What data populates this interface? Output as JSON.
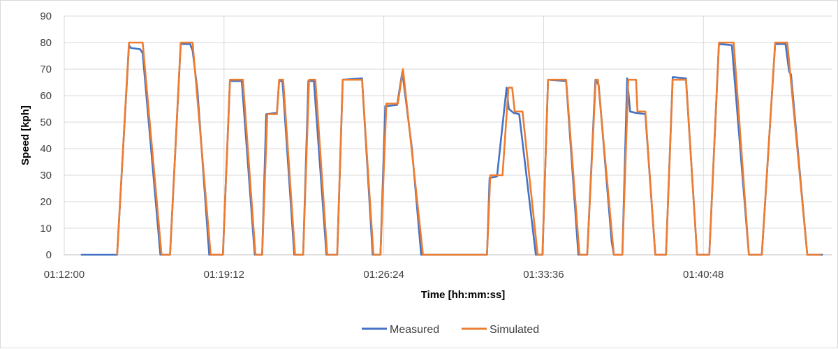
{
  "chart_data": {
    "type": "line",
    "title": "",
    "xlabel": "Time [hh:mm:ss]",
    "ylabel": "Speed [kph]",
    "x_units": "seconds since 01:12:00",
    "xlim": [
      0,
      2075
    ],
    "ylim": [
      0,
      90
    ],
    "y_ticks": [
      0,
      10,
      20,
      30,
      40,
      50,
      60,
      70,
      80,
      90
    ],
    "x_ticks": [
      0,
      432,
      864,
      1296,
      1728
    ],
    "x_tick_labels": [
      "01:12:00",
      "01:19:12",
      "01:26:24",
      "01:33:36",
      "01:40:48"
    ],
    "grid": true,
    "legend_position": "bottom",
    "series": [
      {
        "name": "Measured",
        "color": "#4472c4",
        "points": [
          [
            45,
            0
          ],
          [
            143,
            0
          ],
          [
            175,
            79
          ],
          [
            180,
            78
          ],
          [
            205,
            77.5
          ],
          [
            212,
            76
          ],
          [
            260,
            0
          ],
          [
            286,
            0
          ],
          [
            315,
            79.5
          ],
          [
            340,
            79.5
          ],
          [
            347,
            77
          ],
          [
            360,
            62
          ],
          [
            392,
            0
          ],
          [
            429,
            0
          ],
          [
            448,
            65.5
          ],
          [
            480,
            65.5
          ],
          [
            515,
            0
          ],
          [
            535,
            0
          ],
          [
            546,
            53
          ],
          [
            575,
            53.5
          ],
          [
            581,
            65.5
          ],
          [
            590,
            65.5
          ],
          [
            622,
            0
          ],
          [
            646,
            0
          ],
          [
            660,
            65.5
          ],
          [
            675,
            65.5
          ],
          [
            709,
            0
          ],
          [
            738,
            0
          ],
          [
            753,
            66
          ],
          [
            805,
            66.5
          ],
          [
            834,
            0
          ],
          [
            855,
            0
          ],
          [
            868,
            56
          ],
          [
            900,
            56.5
          ],
          [
            914,
            69
          ],
          [
            940,
            40
          ],
          [
            965,
            0
          ],
          [
            1143,
            0
          ],
          [
            1150,
            29
          ],
          [
            1170,
            29.5
          ],
          [
            1196,
            63
          ],
          [
            1202,
            55
          ],
          [
            1215,
            53.5
          ],
          [
            1230,
            53
          ],
          [
            1275,
            0
          ],
          [
            1293,
            0
          ],
          [
            1308,
            66
          ],
          [
            1357,
            65.5
          ],
          [
            1390,
            0
          ],
          [
            1414,
            0
          ],
          [
            1436,
            66
          ],
          [
            1445,
            64
          ],
          [
            1480,
            5
          ],
          [
            1486,
            0
          ],
          [
            1509,
            0
          ],
          [
            1522,
            66.5
          ],
          [
            1530,
            54
          ],
          [
            1545,
            53.5
          ],
          [
            1571,
            53
          ],
          [
            1598,
            0
          ],
          [
            1627,
            0
          ],
          [
            1645,
            67
          ],
          [
            1681,
            66.5
          ],
          [
            1711,
            0
          ],
          [
            1744,
            0
          ],
          [
            1770,
            79.5
          ],
          [
            1805,
            79
          ],
          [
            1851,
            0
          ],
          [
            1886,
            0
          ],
          [
            1922,
            79.5
          ],
          [
            1950,
            79.5
          ],
          [
            1960,
            69
          ],
          [
            1965,
            68
          ],
          [
            2009,
            0
          ],
          [
            2051,
            0
          ]
        ]
      },
      {
        "name": "Simulated",
        "color": "#ed7d31",
        "points": [
          [
            143,
            0
          ],
          [
            175,
            80
          ],
          [
            212,
            80
          ],
          [
            263,
            0
          ],
          [
            286,
            0
          ],
          [
            315,
            80
          ],
          [
            347,
            80
          ],
          [
            396,
            0
          ],
          [
            429,
            0
          ],
          [
            448,
            66
          ],
          [
            483,
            66
          ],
          [
            517,
            0
          ],
          [
            535,
            0
          ],
          [
            549,
            53
          ],
          [
            575,
            53
          ],
          [
            581,
            66
          ],
          [
            592,
            66
          ],
          [
            624,
            0
          ],
          [
            646,
            0
          ],
          [
            662,
            66
          ],
          [
            679,
            66
          ],
          [
            711,
            0
          ],
          [
            738,
            0
          ],
          [
            753,
            66
          ],
          [
            805,
            66
          ],
          [
            836,
            0
          ],
          [
            855,
            0
          ],
          [
            871,
            57
          ],
          [
            902,
            57
          ],
          [
            916,
            70
          ],
          [
            970,
            0
          ],
          [
            1143,
            0
          ],
          [
            1152,
            30
          ],
          [
            1185,
            30
          ],
          [
            1201,
            63
          ],
          [
            1211,
            63
          ],
          [
            1218,
            54
          ],
          [
            1239,
            54
          ],
          [
            1280,
            0
          ],
          [
            1293,
            0
          ],
          [
            1308,
            66
          ],
          [
            1357,
            66
          ],
          [
            1393,
            0
          ],
          [
            1414,
            0
          ],
          [
            1437,
            66
          ],
          [
            1443,
            66
          ],
          [
            1486,
            0
          ],
          [
            1509,
            0
          ],
          [
            1525,
            66
          ],
          [
            1546,
            66
          ],
          [
            1550,
            54
          ],
          [
            1571,
            54
          ],
          [
            1598,
            0
          ],
          [
            1627,
            0
          ],
          [
            1645,
            66
          ],
          [
            1681,
            66
          ],
          [
            1711,
            0
          ],
          [
            1744,
            0
          ],
          [
            1770,
            80
          ],
          [
            1810,
            80
          ],
          [
            1851,
            0
          ],
          [
            1886,
            0
          ],
          [
            1922,
            80
          ],
          [
            1955,
            80
          ],
          [
            2009,
            0
          ],
          [
            2046,
            0
          ]
        ]
      }
    ]
  }
}
